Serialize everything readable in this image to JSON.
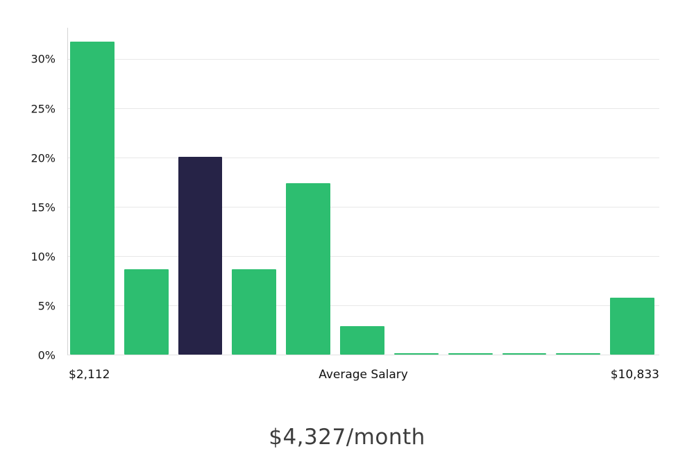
{
  "chart_data": {
    "type": "bar",
    "title": "$4,327/month",
    "x_labels": {
      "left": "$2,112",
      "center": "Average Salary",
      "right": "$10,833"
    },
    "yticks": [
      "0%",
      "5%",
      "10%",
      "15%",
      "20%",
      "25%",
      "30%"
    ],
    "ylim": [
      0,
      33.2
    ],
    "values": [
      31.8,
      8.7,
      20.1,
      8.7,
      17.4,
      2.9,
      0.15,
      0.15,
      0.15,
      0.15,
      5.8
    ],
    "highlight_index": 2,
    "bar_color": "#2dbe70",
    "highlight_color": "#262347",
    "grid": true,
    "legend": "none"
  }
}
